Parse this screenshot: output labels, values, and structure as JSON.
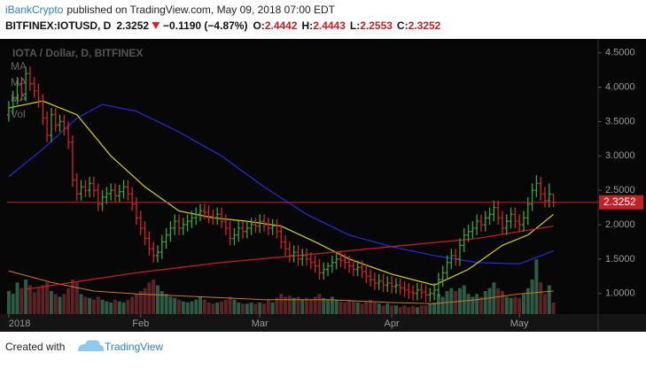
{
  "header": {
    "author": "iBankCrypto",
    "published": "published on TradingView.com, May 09, 2018 07:00 EDT",
    "symbol": "BITFINEX:IOTUSD, D",
    "change": "−0.1190 (−4.87%)",
    "o_label": "O:",
    "h_label": "H:",
    "l_label": "L:",
    "c_label": "C:"
  },
  "chart_data": {
    "type": "ohlc",
    "watermark": "IOTA / Dollar, D, BITFINEX",
    "indicator_labels": [
      "MA",
      "MA",
      "MA",
      "Vol"
    ],
    "up_color": "#3aa63c",
    "down_color": "#d0262b",
    "volume_up_color": "#2f5a46",
    "volume_down_color": "#5a2326",
    "price_line_color": "#c42026",
    "xlim": [
      -0.4,
      138.5
    ],
    "ylim": [
      0.7,
      4.69
    ],
    "vlim": [
      0,
      100
    ],
    "xticks": [
      {
        "value": 0,
        "label": "2018"
      },
      {
        "value": 31,
        "label": "Feb"
      },
      {
        "value": 59,
        "label": "Mar"
      },
      {
        "value": 90,
        "label": "Apr"
      },
      {
        "value": 120,
        "label": "May"
      }
    ],
    "yticks": [
      {
        "value": 1,
        "label": "1.0000"
      },
      {
        "value": 1.5,
        "label": "1.5000"
      },
      {
        "value": 2,
        "label": "2.0000"
      },
      {
        "value": 2.5,
        "label": "2.5000"
      },
      {
        "value": 3,
        "label": "3.0000"
      },
      {
        "value": 3.5,
        "label": "3.5000"
      },
      {
        "value": 4,
        "label": "4.0000"
      },
      {
        "value": 4.5,
        "label": "4.5000"
      }
    ],
    "open": [
      3.6,
      3.7,
      3.85,
      4.05,
      3.9,
      4.2,
      4.05,
      3.95,
      3.8,
      3.55,
      3.3,
      3.6,
      3.45,
      3.5,
      3.4,
      3.2,
      2.65,
      2.45,
      2.55,
      2.5,
      2.6,
      2.5,
      2.3,
      2.4,
      2.45,
      2.5,
      2.42,
      2.48,
      2.55,
      2.45,
      2.3,
      2.1,
      1.95,
      1.8,
      1.65,
      1.55,
      1.6,
      1.75,
      1.85,
      1.95,
      2.05,
      1.95,
      2.0,
      2.05,
      2.1,
      2.15,
      2.2,
      2.18,
      2.12,
      2.1,
      2.15,
      2.05,
      1.95,
      1.8,
      1.85,
      1.95,
      1.9,
      1.95,
      2.0,
      1.98,
      2.05,
      2.0,
      1.95,
      1.98,
      1.9,
      1.75,
      1.65,
      1.55,
      1.6,
      1.5,
      1.55,
      1.5,
      1.45,
      1.4,
      1.3,
      1.35,
      1.4,
      1.45,
      1.5,
      1.48,
      1.45,
      1.4,
      1.35,
      1.38,
      1.32,
      1.25,
      1.2,
      1.15,
      1.18,
      1.12,
      1.15,
      1.1,
      1.12,
      1.08,
      1.05,
      1.02,
      1.0,
      1.05,
      1.02,
      0.98,
      1.0,
      1.05,
      1.2,
      1.3,
      1.45,
      1.55,
      1.5,
      1.7,
      1.85,
      1.9,
      1.95,
      2.05,
      2.0,
      2.1,
      2.15,
      2.25,
      2.1,
      1.95,
      2.05,
      2.15,
      2.05,
      2.0,
      2.1,
      2.3,
      2.5,
      2.6,
      2.45,
      2.35,
      2.4442
    ],
    "high": [
      3.8,
      3.95,
      4.15,
      4.15,
      4.3,
      4.3,
      4.15,
      4.05,
      3.9,
      3.65,
      3.7,
      3.7,
      3.6,
      3.6,
      3.5,
      3.3,
      2.75,
      2.65,
      2.65,
      2.7,
      2.7,
      2.6,
      2.5,
      2.55,
      2.6,
      2.6,
      2.58,
      2.65,
      2.65,
      2.55,
      2.4,
      2.2,
      2.05,
      1.9,
      1.75,
      1.7,
      1.85,
      1.95,
      2.05,
      2.15,
      2.15,
      2.1,
      2.15,
      2.2,
      2.25,
      2.3,
      2.3,
      2.28,
      2.22,
      2.25,
      2.25,
      2.15,
      2.05,
      1.95,
      2.05,
      2.05,
      2.05,
      2.1,
      2.1,
      2.15,
      2.15,
      2.1,
      2.08,
      2.08,
      2.0,
      1.85,
      1.75,
      1.7,
      1.7,
      1.65,
      1.65,
      1.6,
      1.55,
      1.5,
      1.45,
      1.45,
      1.55,
      1.6,
      1.6,
      1.58,
      1.55,
      1.5,
      1.48,
      1.48,
      1.42,
      1.35,
      1.3,
      1.28,
      1.28,
      1.25,
      1.25,
      1.22,
      1.22,
      1.18,
      1.15,
      1.12,
      1.15,
      1.15,
      1.12,
      1.08,
      1.15,
      1.3,
      1.4,
      1.55,
      1.65,
      1.65,
      1.8,
      1.95,
      2.0,
      2.05,
      2.15,
      2.15,
      2.2,
      2.25,
      2.35,
      2.35,
      2.2,
      2.15,
      2.25,
      2.25,
      2.15,
      2.2,
      2.4,
      2.6,
      2.72,
      2.7,
      2.55,
      2.6,
      2.4443
    ],
    "low": [
      3.5,
      3.6,
      3.75,
      3.8,
      3.8,
      3.95,
      3.85,
      3.7,
      3.45,
      3.2,
      3.2,
      3.35,
      3.35,
      3.3,
      3.1,
      2.55,
      2.35,
      2.35,
      2.4,
      2.4,
      2.4,
      2.2,
      2.2,
      2.3,
      2.35,
      2.32,
      2.32,
      2.38,
      2.35,
      2.2,
      2.0,
      1.85,
      1.7,
      1.55,
      1.45,
      1.45,
      1.5,
      1.65,
      1.75,
      1.85,
      1.85,
      1.85,
      1.9,
      1.95,
      2.0,
      2.05,
      2.08,
      2.02,
      2.0,
      2.0,
      1.95,
      1.85,
      1.7,
      1.7,
      1.75,
      1.8,
      1.8,
      1.85,
      1.88,
      1.88,
      1.9,
      1.85,
      1.85,
      1.8,
      1.65,
      1.55,
      1.45,
      1.45,
      1.4,
      1.4,
      1.4,
      1.35,
      1.3,
      1.2,
      1.2,
      1.25,
      1.3,
      1.35,
      1.38,
      1.35,
      1.3,
      1.25,
      1.25,
      1.22,
      1.15,
      1.1,
      1.05,
      1.05,
      1.02,
      1.02,
      1.0,
      1.0,
      0.98,
      0.95,
      0.92,
      0.9,
      0.9,
      0.92,
      0.88,
      0.88,
      0.9,
      0.95,
      1.1,
      1.2,
      1.35,
      1.4,
      1.4,
      1.6,
      1.75,
      1.8,
      1.85,
      1.9,
      1.9,
      2.0,
      2.05,
      2.0,
      1.85,
      1.85,
      1.95,
      1.95,
      1.9,
      1.9,
      2.0,
      2.2,
      2.4,
      2.35,
      2.25,
      2.25,
      2.2553
    ],
    "close": [
      3.7,
      3.85,
      4.05,
      3.9,
      4.2,
      4.05,
      3.95,
      3.8,
      3.55,
      3.3,
      3.6,
      3.45,
      3.5,
      3.4,
      3.2,
      2.65,
      2.45,
      2.55,
      2.5,
      2.6,
      2.5,
      2.3,
      2.4,
      2.45,
      2.5,
      2.42,
      2.48,
      2.55,
      2.45,
      2.3,
      2.1,
      1.95,
      1.8,
      1.65,
      1.55,
      1.6,
      1.75,
      1.85,
      1.95,
      2.05,
      1.95,
      2.0,
      2.05,
      2.1,
      2.15,
      2.2,
      2.18,
      2.12,
      2.1,
      2.15,
      2.05,
      1.95,
      1.8,
      1.85,
      1.95,
      1.9,
      1.95,
      2.0,
      1.98,
      2.05,
      2.0,
      1.95,
      1.98,
      1.9,
      1.75,
      1.65,
      1.55,
      1.6,
      1.5,
      1.55,
      1.5,
      1.45,
      1.4,
      1.3,
      1.35,
      1.4,
      1.45,
      1.5,
      1.48,
      1.45,
      1.4,
      1.35,
      1.38,
      1.32,
      1.25,
      1.2,
      1.15,
      1.18,
      1.12,
      1.15,
      1.1,
      1.12,
      1.08,
      1.05,
      1.02,
      1.0,
      1.05,
      1.02,
      0.98,
      1.0,
      1.05,
      1.2,
      1.3,
      1.45,
      1.55,
      1.5,
      1.7,
      1.85,
      1.9,
      1.95,
      2.05,
      2.0,
      2.1,
      2.15,
      2.25,
      2.1,
      1.95,
      2.05,
      2.15,
      2.05,
      2.0,
      2.1,
      2.3,
      2.5,
      2.6,
      2.45,
      2.35,
      2.4442,
      2.3252
    ],
    "volume": [
      40,
      35,
      55,
      45,
      60,
      50,
      38,
      45,
      50,
      55,
      40,
      35,
      30,
      35,
      45,
      60,
      55,
      35,
      30,
      28,
      25,
      30,
      25,
      22,
      20,
      25,
      22,
      20,
      25,
      30,
      35,
      40,
      45,
      55,
      60,
      50,
      40,
      35,
      30,
      28,
      25,
      22,
      20,
      22,
      25,
      30,
      25,
      20,
      18,
      20,
      22,
      25,
      30,
      25,
      20,
      18,
      18,
      20,
      18,
      20,
      18,
      25,
      20,
      28,
      35,
      30,
      32,
      28,
      30,
      25,
      28,
      25,
      30,
      35,
      28,
      25,
      30,
      25,
      22,
      20,
      25,
      22,
      20,
      18,
      22,
      25,
      20,
      18,
      15,
      18,
      15,
      15,
      12,
      15,
      12,
      14,
      12,
      15,
      15,
      18,
      20,
      35,
      30,
      40,
      45,
      40,
      45,
      50,
      35,
      30,
      35,
      30,
      40,
      45,
      55,
      45,
      40,
      30,
      28,
      30,
      28,
      35,
      45,
      60,
      95,
      55,
      35,
      50,
      20
    ],
    "overlays": [
      {
        "color": "#2a2ad6",
        "x": [
          0,
          8,
          16,
          22,
          30,
          40,
          50,
          60,
          70,
          80,
          90,
          100,
          110,
          120,
          128
        ],
        "values": [
          2.7,
          3.1,
          3.55,
          3.75,
          3.65,
          3.35,
          3.0,
          2.55,
          2.15,
          1.85,
          1.68,
          1.55,
          1.45,
          1.43,
          1.62
        ]
      },
      {
        "color": "#d8d020",
        "x": [
          0,
          8,
          16,
          24,
          32,
          40,
          48,
          56,
          64,
          72,
          80,
          90,
          100,
          108,
          116,
          122,
          128
        ],
        "values": [
          3.7,
          3.8,
          3.6,
          3.0,
          2.55,
          2.2,
          2.1,
          2.05,
          1.98,
          1.75,
          1.5,
          1.28,
          1.12,
          1.35,
          1.7,
          1.85,
          2.15
        ]
      },
      {
        "color": "#c8201f",
        "x": [
          4,
          30,
          50,
          80,
          110,
          128
        ],
        "values": [
          1.06,
          1.3,
          1.45,
          1.62,
          1.8,
          1.98
        ]
      }
    ],
    "volume_ma": {
      "color": "#c87a2a",
      "x": [
        0,
        10,
        20,
        30,
        45,
        60,
        75,
        90,
        100,
        110,
        120,
        128
      ],
      "values": [
        75,
        55,
        40,
        35,
        30,
        25,
        25,
        20,
        18,
        25,
        35,
        40
      ]
    }
  },
  "footer": {
    "created": "Created with",
    "brand": "TradingView"
  }
}
